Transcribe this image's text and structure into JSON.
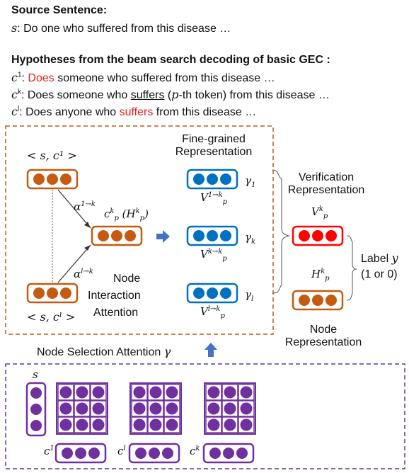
{
  "source": {
    "heading": "Source Sentence:",
    "sentence_prefix": "s",
    "sentence_text": ": Do one who suffered from this disease …"
  },
  "hypotheses": {
    "heading": "Hypotheses from the beam search decoding of basic GEC :",
    "lines": [
      {
        "var": "c",
        "sup": "1",
        "pre": ": ",
        "red": "Does",
        "post": " someone who suffered from this disease …"
      },
      {
        "var": "c",
        "sup": "k",
        "pre": ": Does someone who ",
        "underline": "suffers",
        "mid": " (",
        "p": "p",
        "after_p": "-th token) from this disease …"
      },
      {
        "var": "c",
        "sup": "l",
        "pre": ": Does anyone who ",
        "red": "suffers",
        "post": " from this disease …"
      }
    ]
  },
  "diagram": {
    "pair_top": "< s, c¹ >",
    "pair_bottom": "< s, cˡ >",
    "alpha_top": "α",
    "alpha_top_sup": "1→k",
    "alpha_bottom": "α",
    "alpha_bottom_sup": "l→k",
    "center_node": "c",
    "center_node_sup": "k",
    "center_node_sub": "p",
    "center_node_paren": "(H",
    "center_node_paren_sup": "k",
    "center_node_paren_sub": "p",
    "center_node_close": ")",
    "node_interaction": [
      "Node",
      "Interaction",
      "Attention"
    ],
    "fine_grained": [
      "Fine-grained",
      "Representation"
    ],
    "v1": {
      "base": "V",
      "sup": "1→k",
      "sub": "p",
      "gamma": "γ",
      "gamma_sub": "1"
    },
    "vk": {
      "base": "V",
      "sup": "k→k",
      "sub": "p",
      "gamma": "γ",
      "gamma_sub": "k"
    },
    "vl": {
      "base": "V",
      "sup": "l→k",
      "sub": "p",
      "gamma": "γ",
      "gamma_sub": "l"
    },
    "verification": [
      "Verification",
      "Representation"
    ],
    "verif_var": {
      "base": "V",
      "sup": "k",
      "sub": "p"
    },
    "node_var": {
      "base": "H",
      "sup": "k",
      "sub": "p"
    },
    "node_representation": [
      "Node",
      "Representation"
    ],
    "label": [
      "Label ",
      "y",
      "(1 or 0)"
    ],
    "selection": "Node Selection Attention ",
    "selection_gamma": "γ",
    "s_label": "s",
    "bottom_labels": {
      "c1": "c",
      "c1_sup": "1",
      "cl": "c",
      "cl_sup": "l",
      "ck": "c",
      "ck_sup": "k"
    }
  },
  "colors": {
    "orange": "#c55a11",
    "blue": "#0070c0",
    "red": "#ff0000",
    "purple": "#7030a0",
    "arrow_blue": "#4472c4"
  }
}
